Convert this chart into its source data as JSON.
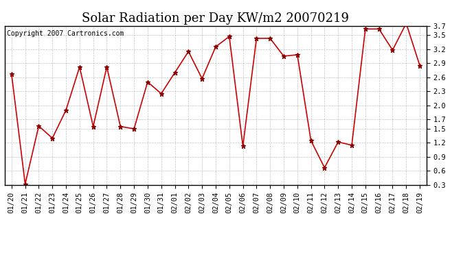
{
  "title": "Solar Radiation per Day KW/m2 20070219",
  "copyright": "Copyright 2007 Cartronics.com",
  "labels": [
    "01/20",
    "01/21",
    "01/22",
    "01/23",
    "01/24",
    "01/25",
    "01/26",
    "01/27",
    "01/28",
    "01/29",
    "01/30",
    "01/31",
    "02/01",
    "02/02",
    "02/03",
    "02/04",
    "02/05",
    "02/06",
    "02/07",
    "02/08",
    "02/09",
    "02/10",
    "02/11",
    "02/12",
    "02/13",
    "02/14",
    "02/15",
    "02/16",
    "02/17",
    "02/18",
    "02/19"
  ],
  "values": [
    2.67,
    0.32,
    1.56,
    1.3,
    1.9,
    2.82,
    1.55,
    2.82,
    1.55,
    1.5,
    2.5,
    2.25,
    2.7,
    3.15,
    2.57,
    3.25,
    3.47,
    1.13,
    3.43,
    3.43,
    3.05,
    3.08,
    1.25,
    0.67,
    1.22,
    1.15,
    3.63,
    3.63,
    3.18,
    3.75,
    2.85
  ],
  "line_color": "#cc0000",
  "marker": "*",
  "marker_color": "#880000",
  "marker_size": 5,
  "bg_color": "#ffffff",
  "plot_bg_color": "#ffffff",
  "grid_color": "#aaaaaa",
  "ylim": [
    0.3,
    3.7
  ],
  "yticks": [
    0.3,
    0.6,
    0.9,
    1.2,
    1.5,
    1.7,
    2.0,
    2.3,
    2.6,
    2.9,
    3.2,
    3.5,
    3.7
  ],
  "title_fontsize": 13,
  "copyright_fontsize": 7,
  "tick_fontsize": 7.5
}
